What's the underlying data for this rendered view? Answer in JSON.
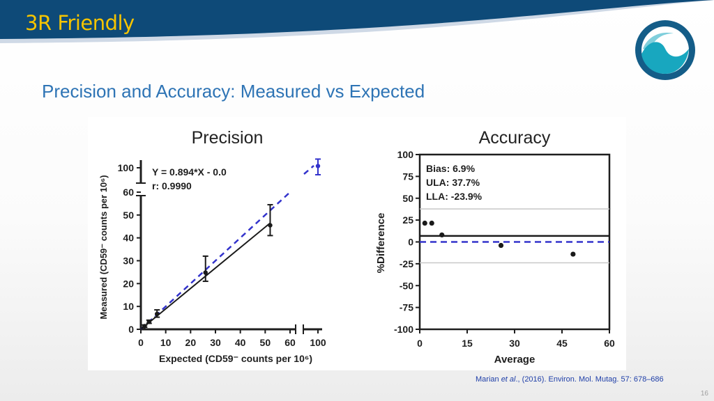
{
  "header": {
    "title": "3R Friendly",
    "colors": {
      "band": "#0e4a78",
      "accent_line": "#cfd9e6",
      "title": "#f5c400"
    }
  },
  "logo": {
    "icon": "company-logo-icon",
    "colors": {
      "ring": "#145d88",
      "wave": "#18a7bf"
    }
  },
  "subtitle": "Precision and Accuracy: Measured vs Expected",
  "chart_data": [
    {
      "type": "scatter",
      "title": "Precision",
      "xlabel": "Expected (CD59⁻ counts per 10⁶)",
      "ylabel": "Measured (CD59⁻ counts per 10⁶)",
      "xlim": [
        0,
        100
      ],
      "ylim": [
        0,
        100
      ],
      "axis_break": "x and y between 60 and 100",
      "x_ticks": [
        "0",
        "10",
        "20",
        "30",
        "40",
        "50",
        "60",
        "100"
      ],
      "y_ticks": [
        "0",
        "10",
        "20",
        "30",
        "40",
        "50",
        "60",
        "100"
      ],
      "annotation": [
        "Y = 0.894*X - 0.0",
        "r: 0.9990"
      ],
      "series": [
        {
          "x": [
            1.5,
            3.3,
            6.5,
            26,
            52
          ],
          "y": [
            1.4,
            3.3,
            6.7,
            24.8,
            45.5
          ],
          "y_low": [
            0.9,
            2.6,
            5.3,
            21,
            41
          ],
          "y_high": [
            1.9,
            4.0,
            8.5,
            32,
            54.5
          ]
        },
        {
          "x": [
            100
          ],
          "y": [
            101
          ],
          "y_low": [
            96
          ],
          "y_high": [
            105
          ]
        }
      ],
      "fit_line": {
        "slope": 0.894,
        "intercept": 0.0,
        "x_range": [
          0,
          52
        ]
      },
      "identity_line": {
        "x_range": [
          0,
          100
        ],
        "style": "dashed"
      },
      "colors": {
        "points": "#1a1a1a",
        "fit": "#1a1a1a",
        "identity": "#3333cc",
        "high_point": "#3333cc"
      }
    },
    {
      "type": "scatter",
      "title": "Accuracy",
      "xlabel": "Average",
      "ylabel": "%Difference",
      "xlim": [
        0,
        60
      ],
      "ylim": [
        -100,
        100
      ],
      "x_ticks": [
        "0",
        "15",
        "30",
        "45",
        "60"
      ],
      "y_ticks": [
        "100",
        "75",
        "50",
        "25",
        "0",
        "-25",
        "-50",
        "-75",
        "-100"
      ],
      "annotation": [
        "Bias: 6.9%",
        "ULA: 37.7%",
        "LLA: -23.9%"
      ],
      "x": [
        1.6,
        3.8,
        7.0,
        25.7,
        48.5
      ],
      "y": [
        21.5,
        21.5,
        8,
        -4,
        -14
      ],
      "reference_lines": {
        "bias": 6.9,
        "ula": 37.7,
        "lla": -23.9,
        "zero": 0
      },
      "colors": {
        "points": "#1a1a1a",
        "bias": "#1a1a1a",
        "limits": "#c8c8c8",
        "zero": "#3333cc"
      }
    }
  ],
  "citation": {
    "authors": "Marian ",
    "etal": "et al",
    "rest": "., (2016). Environ. Mol. Mutag. 57: 678–686"
  },
  "page_number": "16"
}
